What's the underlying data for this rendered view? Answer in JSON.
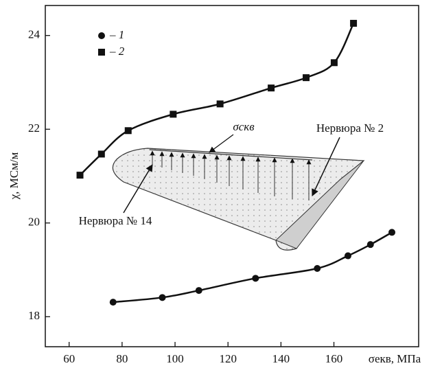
{
  "chart_data": {
    "type": "line",
    "x_label": "σекв, МПа",
    "y_label": "χ, МСм/м",
    "xlim": [
      51,
      192
    ],
    "xticks": [
      60,
      80,
      100,
      120,
      140,
      160
    ],
    "ylim": [
      17.36,
      24.64
    ],
    "yticks": [
      18,
      20,
      22,
      24
    ],
    "legend": "upper left",
    "series": [
      {
        "name": "– 1",
        "color": "#111111",
        "marker": "circle",
        "x": [
          76.6,
          95.2,
          109,
          130.4,
          153.7,
          165.3,
          173.8,
          181.9
        ],
        "values": [
          18.31,
          18.41,
          18.56,
          18.82,
          19.03,
          19.3,
          19.54,
          19.8
        ]
      },
      {
        "name": "– 2",
        "color": "#111111",
        "marker": "square",
        "x": [
          64.1,
          72.2,
          82.3,
          99.3,
          117,
          136.3,
          149.5,
          160.1,
          167.4
        ],
        "values": [
          21.02,
          21.47,
          21.97,
          22.32,
          22.54,
          22.88,
          23.1,
          23.42,
          24.26
        ]
      }
    ],
    "annotations": [
      "σскв",
      "Нервюра № 2",
      "Нервюра № 14"
    ]
  }
}
